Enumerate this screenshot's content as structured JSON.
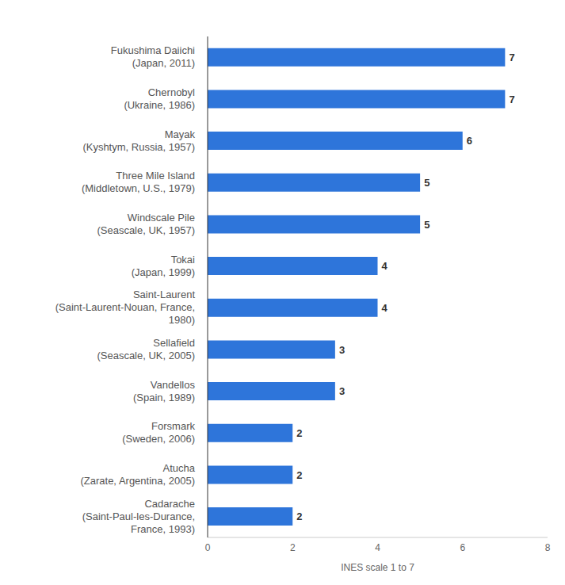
{
  "chart_data": {
    "type": "bar",
    "orientation": "horizontal",
    "categories": [
      "Fukushima Daiichi\n(Japan, 2011)",
      "Chernobyl\n(Ukraine, 1986)",
      "Mayak\n(Kyshtym, Russia, 1957)",
      "Three Mile Island\n(Middletown, U.S., 1979)",
      "Windscale Pile\n(Seascale, UK, 1957)",
      "Tokai\n(Japan, 1999)",
      "Saint-Laurent\n(Saint-Laurent-Nouan, France,\n1980)",
      "Sellafield\n(Seascale, UK, 2005)",
      "Vandellos\n(Spain, 1989)",
      "Forsmark\n(Sweden, 2006)",
      "Atucha\n(Zarate, Argentina, 2005)",
      "Cadarache\n(Saint-Paul-les-Durance,\nFrance, 1993)"
    ],
    "values": [
      7,
      7,
      6,
      5,
      5,
      4,
      4,
      3,
      3,
      2,
      2,
      2
    ],
    "color": "#2e75da",
    "xlabel": "INES scale 1 to 7",
    "xlim": [
      0,
      8
    ],
    "xticks": [
      0,
      2,
      4,
      6,
      8
    ],
    "data_labels": true,
    "grid": false
  }
}
